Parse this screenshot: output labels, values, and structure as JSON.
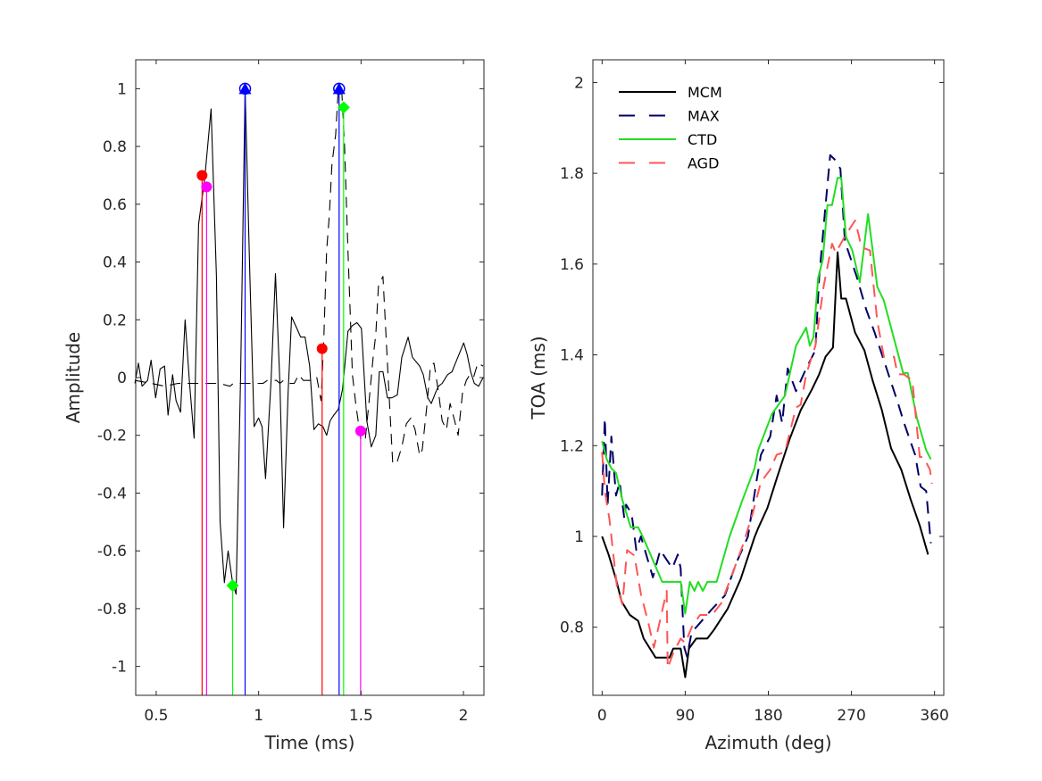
{
  "chart_data": [
    {
      "type": "line",
      "xlabel": "Time (ms)",
      "ylabel": "Amplitude",
      "xlim": [
        0.4,
        2.1
      ],
      "ylim": [
        -1.1,
        1.1
      ],
      "xticks": [
        0.5,
        1,
        1.5,
        2
      ],
      "xtick_labels": [
        "0.5",
        "1",
        "1.5",
        "2"
      ],
      "yticks": [
        -1,
        -0.8,
        -0.6,
        -0.4,
        -0.2,
        0,
        0.2,
        0.4,
        0.6,
        0.8,
        1
      ],
      "ytick_labels": [
        "-1",
        "-0.8",
        "-0.6",
        "-0.4",
        "-0.2",
        "0",
        "0.2",
        "0.4",
        "0.6",
        "0.8",
        "1"
      ],
      "grid": false,
      "series": [
        {
          "style": "solid",
          "color": "#000000",
          "x": [
            0.396,
            0.413,
            0.431,
            0.458,
            0.475,
            0.497,
            0.519,
            0.541,
            0.558,
            0.58,
            0.597,
            0.619,
            0.641,
            0.663,
            0.685,
            0.707,
            0.737,
            0.768,
            0.794,
            0.812,
            0.833,
            0.851,
            0.873,
            0.89,
            0.912,
            0.934,
            0.956,
            0.978,
            1.0,
            1.017,
            1.034,
            1.061,
            1.082,
            1.104,
            1.122,
            1.144,
            1.161,
            1.187,
            1.205,
            1.227,
            1.249,
            1.27,
            1.292,
            1.314,
            1.332,
            1.349,
            1.367,
            1.389,
            1.41,
            1.436,
            1.458,
            1.48,
            1.502,
            1.528,
            1.55,
            1.572,
            1.589,
            1.607,
            1.629,
            1.651,
            1.677,
            1.699,
            1.73,
            1.751,
            1.786,
            1.804,
            1.826,
            1.843,
            1.865,
            1.878,
            1.896,
            1.922,
            1.944,
            1.961,
            2.001,
            2.018,
            2.035,
            2.053,
            2.074,
            2.096
          ],
          "y": [
            -0.02,
            0.05,
            -0.03,
            -0.01,
            0.06,
            -0.07,
            0.03,
            0.04,
            -0.13,
            0.01,
            -0.08,
            -0.12,
            0.2,
            -0.02,
            -0.21,
            0.53,
            0.69,
            0.93,
            0.35,
            -0.5,
            -0.71,
            -0.6,
            -0.71,
            -0.75,
            0.01,
            1.0,
            0.38,
            -0.17,
            -0.14,
            -0.17,
            -0.35,
            -0.01,
            0.36,
            -0.02,
            -0.52,
            -0.05,
            0.21,
            0.17,
            0.14,
            0.14,
            0.04,
            -0.18,
            -0.16,
            -0.17,
            -0.2,
            -0.15,
            -0.13,
            -0.11,
            -0.04,
            0.16,
            0.18,
            0.19,
            0.17,
            -0.15,
            -0.24,
            -0.2,
            0.02,
            0.02,
            -0.07,
            -0.07,
            -0.06,
            0.07,
            0.14,
            0.07,
            0.04,
            0.01,
            -0.07,
            -0.09,
            -0.05,
            -0.03,
            -0.02,
            0.01,
            0.02,
            0.05,
            0.12,
            0.08,
            0.02,
            -0.02,
            -0.03,
            0.0
          ]
        },
        {
          "style": "dashed",
          "color": "#000000",
          "x": [
            0.396,
            0.475,
            0.541,
            0.606,
            0.672,
            0.746,
            0.807,
            0.86,
            0.877,
            0.938,
            0.978,
            1.021,
            1.043,
            1.087,
            1.104,
            1.122,
            1.152,
            1.174,
            1.196,
            1.218,
            1.262,
            1.284,
            1.292,
            1.305,
            1.318,
            1.332,
            1.345,
            1.358,
            1.376,
            1.389,
            1.406,
            1.419,
            1.436,
            1.458,
            1.476,
            1.498,
            1.52,
            1.537,
            1.559,
            1.572,
            1.585,
            1.607,
            1.633,
            1.655,
            1.677,
            1.699,
            1.721,
            1.743,
            1.764,
            1.786,
            1.799,
            1.821,
            1.839,
            1.856,
            1.878,
            1.896,
            1.917,
            1.935,
            1.957,
            1.974,
            1.996,
            2.014,
            2.031,
            2.049,
            2.07,
            2.096
          ],
          "y": [
            -0.01,
            -0.02,
            -0.03,
            -0.02,
            -0.02,
            -0.02,
            -0.02,
            -0.03,
            -0.02,
            -0.02,
            -0.02,
            -0.02,
            -0.01,
            -0.01,
            -0.02,
            -0.01,
            -0.02,
            -0.02,
            0.01,
            -0.01,
            -0.01,
            0.0,
            -0.03,
            -0.08,
            0.13,
            0.44,
            0.56,
            0.74,
            0.84,
            1.0,
            0.99,
            0.81,
            0.44,
            0.01,
            -0.1,
            -0.21,
            -0.22,
            -0.1,
            0.07,
            0.15,
            0.32,
            0.35,
            -0.01,
            -0.3,
            -0.29,
            -0.24,
            -0.16,
            -0.14,
            -0.18,
            -0.27,
            -0.25,
            -0.1,
            0.04,
            0.05,
            -0.05,
            -0.15,
            -0.18,
            -0.09,
            -0.15,
            -0.2,
            -0.05,
            -0.01,
            0.01,
            0.0,
            0.05,
            0.04
          ]
        }
      ],
      "markers": [
        {
          "x": 0.724,
          "y": 0.7,
          "color": "#ff0000",
          "shape": "circle"
        },
        {
          "x": 0.746,
          "y": 0.66,
          "color": "#ff00ff",
          "shape": "circle"
        },
        {
          "x": 0.934,
          "y": 1.0,
          "color": "#0000ff",
          "shape": "triangle"
        },
        {
          "x": 0.873,
          "y": -0.72,
          "color": "#00ff00",
          "shape": "diamond"
        },
        {
          "x": 1.31,
          "y": 0.1,
          "color": "#ff0000",
          "shape": "circle"
        },
        {
          "x": 1.393,
          "y": 1.0,
          "color": "#0000ff",
          "shape": "triangle"
        },
        {
          "x": 1.415,
          "y": 0.935,
          "color": "#00ff00",
          "shape": "diamond"
        },
        {
          "x": 1.498,
          "y": -0.185,
          "color": "#ff00ff",
          "shape": "circle"
        }
      ]
    },
    {
      "type": "line",
      "xlabel": "Azimuth (deg)",
      "ylabel": "TOA (ms)",
      "xlim": [
        -10,
        370
      ],
      "ylim": [
        0.65,
        2.05
      ],
      "xticks": [
        0,
        90,
        180,
        270,
        360
      ],
      "xtick_labels": [
        "0",
        "90",
        "180",
        "270",
        "360"
      ],
      "yticks": [
        0.8,
        1,
        1.2,
        1.4,
        1.6,
        1.8,
        2
      ],
      "ytick_labels": [
        "0.8",
        "1",
        "1.2",
        "1.4",
        "1.6",
        "1.8",
        "2"
      ],
      "grid": false,
      "legend_position": "top-left",
      "series": [
        {
          "name": "MCM",
          "style": "solid",
          "color": "#000000",
          "x": [
            0,
            7,
            15,
            21,
            30,
            39,
            45,
            58,
            73,
            77,
            85,
            90,
            94,
            102,
            114,
            121,
            136,
            150,
            165,
            169,
            179,
            189,
            203,
            215,
            227,
            235,
            242,
            250,
            255,
            259,
            264,
            274,
            284,
            293,
            303,
            313,
            324,
            334,
            344,
            353
          ],
          "y": [
            1.0,
            0.96,
            0.906,
            0.857,
            0.827,
            0.814,
            0.775,
            0.733,
            0.733,
            0.753,
            0.753,
            0.69,
            0.753,
            0.775,
            0.775,
            0.794,
            0.841,
            0.906,
            0.998,
            1.018,
            1.063,
            1.127,
            1.214,
            1.278,
            1.323,
            1.357,
            1.396,
            1.416,
            1.626,
            1.524,
            1.524,
            1.449,
            1.41,
            1.343,
            1.278,
            1.194,
            1.147,
            1.082,
            1.024,
            0.96
          ]
        },
        {
          "name": "MAX",
          "style": "dashed",
          "color": "#000066",
          "x": [
            0,
            3,
            6,
            10,
            15,
            19,
            24,
            26,
            32,
            37,
            42,
            55,
            63,
            76,
            82,
            85,
            87,
            89,
            92,
            97,
            102,
            119,
            133,
            145,
            158,
            167,
            172,
            182,
            189,
            195,
            201,
            210,
            221,
            231,
            235,
            242,
            247,
            252,
            258,
            263,
            276,
            286,
            295,
            308,
            321,
            327,
            339,
            345,
            351,
            356
          ],
          "y": [
            1.09,
            1.26,
            1.07,
            1.22,
            1.09,
            1.12,
            1.04,
            1.07,
            1.05,
            0.97,
            1.0,
            0.91,
            0.97,
            0.93,
            0.96,
            0.93,
            0.84,
            0.755,
            0.735,
            0.79,
            0.8,
            0.84,
            0.87,
            0.94,
            1.0,
            1.12,
            1.18,
            1.22,
            1.31,
            1.25,
            1.37,
            1.32,
            1.37,
            1.41,
            1.57,
            1.73,
            1.84,
            1.83,
            1.81,
            1.65,
            1.57,
            1.5,
            1.45,
            1.37,
            1.29,
            1.25,
            1.18,
            1.11,
            1.1,
            0.985
          ]
        },
        {
          "name": "CTD",
          "style": "solid",
          "color": "#22dd22",
          "x": [
            0,
            5,
            10,
            15,
            22,
            31,
            39,
            44,
            65,
            85,
            90,
            95,
            100,
            104,
            109,
            114,
            124,
            138,
            152,
            165,
            169,
            184,
            198,
            210,
            221,
            225,
            229,
            234,
            239,
            244,
            249,
            255,
            259,
            264,
            271,
            279,
            288,
            298,
            305,
            326,
            331,
            341,
            351,
            356
          ],
          "y": [
            1.21,
            1.17,
            1.15,
            1.14,
            1.08,
            1.02,
            1.02,
            1.0,
            0.9,
            0.9,
            0.83,
            0.9,
            0.88,
            0.9,
            0.88,
            0.9,
            0.9,
            1.0,
            1.08,
            1.15,
            1.19,
            1.27,
            1.31,
            1.42,
            1.46,
            1.42,
            1.44,
            1.57,
            1.61,
            1.73,
            1.73,
            1.79,
            1.79,
            1.66,
            1.63,
            1.56,
            1.71,
            1.55,
            1.52,
            1.36,
            1.36,
            1.26,
            1.19,
            1.17
          ]
        },
        {
          "name": "AGD",
          "style": "dashed",
          "color": "#ff5555",
          "x": [
            0,
            3,
            8,
            16,
            22,
            27,
            35,
            42,
            50,
            56,
            70,
            71,
            77,
            85,
            90,
            97,
            106,
            119,
            129,
            140,
            152,
            163,
            172,
            182,
            189,
            198,
            210,
            215,
            221,
            231,
            240,
            249,
            253,
            264,
            274,
            281,
            290,
            298,
            305,
            316,
            320,
            327,
            336,
            344,
            348,
            355,
            357
          ],
          "y": [
            1.186,
            1.1,
            1.037,
            0.89,
            0.85,
            0.97,
            0.958,
            0.873,
            0.81,
            0.755,
            0.88,
            0.71,
            0.743,
            0.775,
            0.765,
            0.8,
            0.827,
            0.827,
            0.853,
            0.912,
            0.978,
            1.05,
            1.12,
            1.147,
            1.18,
            1.186,
            1.284,
            1.29,
            1.357,
            1.42,
            1.553,
            1.645,
            1.625,
            1.665,
            1.696,
            1.637,
            1.63,
            1.475,
            1.396,
            1.396,
            1.357,
            1.357,
            1.343,
            1.175,
            1.175,
            1.147,
            1.116
          ]
        }
      ]
    }
  ]
}
